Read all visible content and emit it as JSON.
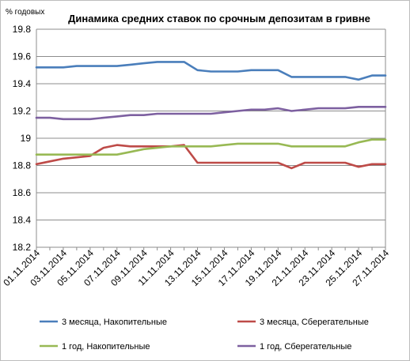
{
  "chart_data": {
    "type": "line",
    "title": "Динамика средних ставок по срочным депозитам в гривне",
    "ylabel": "% годовых",
    "xlabel": "",
    "ylim": [
      18.2,
      19.8
    ],
    "yticks": [
      "18.2",
      "18.4",
      "18.6",
      "18.8",
      "19",
      "19.2",
      "19.4",
      "19.6",
      "19.8"
    ],
    "grid": true,
    "legend_position": "bottom",
    "x": [
      "01.11.2014",
      "02.11.2014",
      "03.11.2014",
      "04.11.2014",
      "05.11.2014",
      "06.11.2014",
      "07.11.2014",
      "08.11.2014",
      "09.11.2014",
      "10.11.2014",
      "11.11.2014",
      "12.11.2014",
      "13.11.2014",
      "14.11.2014",
      "15.11.2014",
      "16.11.2014",
      "17.11.2014",
      "18.11.2014",
      "19.11.2014",
      "20.11.2014",
      "21.11.2014",
      "22.11.2014",
      "23.11.2014",
      "24.11.2014",
      "25.11.2014",
      "26.11.2014",
      "27.11.2014"
    ],
    "x_tick_labels": [
      "01.11.2014",
      "03.11.2014",
      "05.11.2014",
      "07.11.2014",
      "09.11.2014",
      "11.11.2014",
      "13.11.2014",
      "15.11.2014",
      "17.11.2014",
      "19.11.2014",
      "21.11.2014",
      "23.11.2014",
      "25.11.2014",
      "27.11.2014"
    ],
    "series": [
      {
        "name": "3 месяца, Накопительные",
        "color": "#4a7ebb",
        "values": [
          19.52,
          19.52,
          19.52,
          19.53,
          19.53,
          19.53,
          19.53,
          19.54,
          19.55,
          19.56,
          19.56,
          19.56,
          19.5,
          19.49,
          19.49,
          19.49,
          19.5,
          19.5,
          19.5,
          19.45,
          19.45,
          19.45,
          19.45,
          19.45,
          19.43,
          19.46,
          19.46
        ]
      },
      {
        "name": "3 месяца, Сберегательные",
        "color": "#be4b48",
        "values": [
          18.81,
          18.83,
          18.85,
          18.86,
          18.87,
          18.93,
          18.95,
          18.94,
          18.94,
          18.94,
          18.94,
          18.95,
          18.82,
          18.82,
          18.82,
          18.82,
          18.82,
          18.82,
          18.82,
          18.78,
          18.82,
          18.82,
          18.82,
          18.82,
          18.79,
          18.81,
          18.81
        ]
      },
      {
        "name": "1 год, Накопительные",
        "color": "#98b954",
        "values": [
          18.88,
          18.88,
          18.88,
          18.88,
          18.88,
          18.88,
          18.88,
          18.9,
          18.92,
          18.93,
          18.94,
          18.94,
          18.94,
          18.94,
          18.95,
          18.96,
          18.96,
          18.96,
          18.96,
          18.94,
          18.94,
          18.94,
          18.94,
          18.94,
          18.97,
          18.99,
          18.99
        ]
      },
      {
        "name": "1 год, Сберегательные",
        "color": "#7d60a0",
        "values": [
          19.15,
          19.15,
          19.14,
          19.14,
          19.14,
          19.15,
          19.16,
          19.17,
          19.17,
          19.18,
          19.18,
          19.18,
          19.18,
          19.18,
          19.19,
          19.2,
          19.21,
          19.21,
          19.22,
          19.2,
          19.21,
          19.22,
          19.22,
          19.22,
          19.23,
          19.23,
          19.23
        ]
      }
    ]
  }
}
